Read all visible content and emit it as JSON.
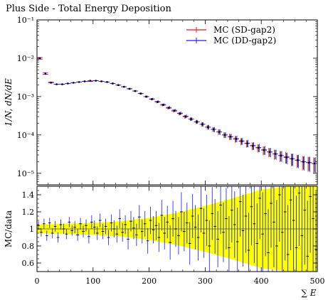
{
  "title": "Plus Side - Total Energy Deposition",
  "chart_data": [
    {
      "type": "scatter",
      "panel": "main",
      "title": "Plus Side - Total Energy Deposition",
      "xlabel": "∑ E",
      "ylabel": "1/N, dN/dE",
      "yscale": "log",
      "xlim": [
        0,
        500
      ],
      "ylim": [
        5e-06,
        0.1
      ],
      "ytick_labels": [
        "10⁻⁵",
        "10⁻⁴",
        "10⁻³",
        "10⁻²",
        "10⁻¹"
      ],
      "legend": "top-right",
      "series": [
        {
          "name": "MC (SD-gap2)",
          "color": "#e8161e",
          "x": [
            5,
            15,
            25,
            35,
            45,
            55,
            65,
            75,
            85,
            95,
            105,
            115,
            125,
            135,
            145,
            155,
            165,
            175,
            185,
            195,
            205,
            215,
            225,
            235,
            245,
            255,
            265,
            275,
            285,
            295,
            305,
            315,
            325,
            335,
            345,
            355,
            365,
            375,
            385,
            395,
            405,
            415,
            425,
            435,
            445,
            455,
            465,
            475,
            485,
            495
          ],
          "y": [
            0.0105,
            0.0042,
            0.0024,
            0.0021,
            0.0021,
            0.0022,
            0.0023,
            0.0024,
            0.0025,
            0.0026,
            0.0026,
            0.0025,
            0.0024,
            0.0022,
            0.002,
            0.0018,
            0.0016,
            0.0014,
            0.0012,
            0.001,
            0.00085,
            0.00072,
            0.0006,
            0.0005,
            0.00042,
            0.00036,
            0.0003,
            0.00026,
            0.00022,
            0.00019,
            0.00016,
            0.00014,
            0.00012,
            0.0001,
            9e-05,
            7.8e-05,
            6.8e-05,
            6e-05,
            5.2e-05,
            4.6e-05,
            4e-05,
            3.6e-05,
            3.2e-05,
            2.9e-05,
            2.7e-05,
            2.4e-05,
            2.2e-05,
            2e-05,
            1.9e-05,
            1.8e-05
          ]
        },
        {
          "name": "MC (DD-gap2)",
          "color": "#1c22e8",
          "x": [
            5,
            15,
            25,
            35,
            45,
            55,
            65,
            75,
            85,
            95,
            105,
            115,
            125,
            135,
            145,
            155,
            165,
            175,
            185,
            195,
            205,
            215,
            225,
            235,
            245,
            255,
            265,
            275,
            285,
            295,
            305,
            315,
            325,
            335,
            345,
            355,
            365,
            375,
            385,
            395,
            405,
            415,
            425,
            435,
            445,
            455,
            465,
            475,
            485,
            495
          ],
          "y": [
            0.0095,
            0.0038,
            0.0023,
            0.0021,
            0.0021,
            0.0022,
            0.0023,
            0.0024,
            0.0025,
            0.0025,
            0.0026,
            0.0025,
            0.0024,
            0.0022,
            0.002,
            0.0018,
            0.0016,
            0.0014,
            0.0012,
            0.001,
            0.00087,
            0.00074,
            0.00062,
            0.00052,
            0.00044,
            0.00037,
            0.00031,
            0.00026,
            0.00022,
            0.00019,
            0.00016,
            0.00014,
            0.00012,
            0.0001,
            9e-05,
            8e-05,
            7e-05,
            6.1e-05,
            5.3e-05,
            4.7e-05,
            4.1e-05,
            3.6e-05,
            3.2e-05,
            2.9e-05,
            2.6e-05,
            2.4e-05,
            2.2e-05,
            2e-05,
            1.9e-05,
            1.8e-05
          ]
        }
      ],
      "data_points": {
        "x": [
          5,
          15,
          25,
          35,
          45,
          55,
          65,
          75,
          85,
          95,
          105,
          115,
          125,
          135,
          145,
          155,
          165,
          175,
          185,
          195,
          205,
          215,
          225,
          235,
          245,
          255,
          265,
          275,
          285,
          295,
          305,
          315,
          325,
          335,
          345,
          355,
          365,
          375,
          385,
          395,
          405,
          415,
          425,
          435,
          445,
          455,
          465,
          475,
          485,
          495
        ],
        "y": [
          0.01,
          0.004,
          0.0023,
          0.0021,
          0.0021,
          0.0022,
          0.0023,
          0.0024,
          0.0025,
          0.0026,
          0.0026,
          0.0025,
          0.0024,
          0.0022,
          0.002,
          0.0018,
          0.0016,
          0.0014,
          0.0012,
          0.001,
          0.00086,
          0.00073,
          0.00061,
          0.00051,
          0.00043,
          0.00036,
          0.0003,
          0.00026,
          0.00022,
          0.00019,
          0.00016,
          0.00014,
          0.00012,
          0.0001,
          9e-05,
          7.9e-05,
          6.9e-05,
          6e-05,
          5.2e-05,
          4.6e-05,
          4e-05,
          3.6e-05,
          3.2e-05,
          2.9e-05,
          2.6e-05,
          2.4e-05,
          2.2e-05,
          2e-05,
          1.9e-05,
          1.8e-05
        ],
        "rel_err": [
          0.02,
          0.02,
          0.03,
          0.03,
          0.03,
          0.03,
          0.03,
          0.03,
          0.03,
          0.03,
          0.03,
          0.03,
          0.04,
          0.04,
          0.04,
          0.04,
          0.05,
          0.05,
          0.05,
          0.06,
          0.06,
          0.07,
          0.07,
          0.08,
          0.08,
          0.09,
          0.1,
          0.1,
          0.11,
          0.12,
          0.13,
          0.14,
          0.15,
          0.16,
          0.17,
          0.18,
          0.19,
          0.2,
          0.21,
          0.22,
          0.24,
          0.25,
          0.27,
          0.29,
          0.31,
          0.33,
          0.35,
          0.37,
          0.39,
          0.41
        ]
      }
    },
    {
      "type": "scatter",
      "panel": "ratio",
      "xlabel": "∑ E",
      "ylabel": "MC/data",
      "xlim": [
        0,
        500
      ],
      "ylim": [
        0.5,
        1.5
      ],
      "xtick_labels": [
        "0",
        "100",
        "200",
        "300",
        "400",
        "500"
      ],
      "ytick_labels": [
        "0.6",
        "0.8",
        "1",
        "1.2",
        "1.4"
      ],
      "band_color": "#ffff00",
      "band_x": [
        0,
        50,
        100,
        150,
        200,
        250,
        300,
        350,
        400,
        450,
        500
      ],
      "band_halfwidth": [
        0.05,
        0.06,
        0.07,
        0.09,
        0.13,
        0.19,
        0.27,
        0.36,
        0.46,
        0.5,
        0.5
      ],
      "ratio_x": [
        2.5,
        7.5,
        12.5,
        17.5,
        22.5,
        27.5,
        32.5,
        37.5,
        42.5,
        47.5,
        52.5,
        57.5,
        62.5,
        67.5,
        72.5,
        77.5,
        82.5,
        87.5,
        92.5,
        97.5,
        102.5,
        107.5,
        112.5,
        117.5,
        122.5,
        127.5,
        132.5,
        137.5,
        142.5,
        147.5,
        152.5,
        157.5,
        162.5,
        167.5,
        172.5,
        177.5,
        182.5,
        187.5,
        192.5,
        197.5,
        202.5,
        207.5,
        212.5,
        217.5,
        222.5,
        227.5,
        232.5,
        237.5,
        242.5,
        247.5,
        252.5,
        257.5,
        262.5,
        267.5,
        272.5,
        277.5,
        282.5,
        287.5,
        292.5,
        297.5,
        302.5,
        307.5,
        312.5,
        317.5,
        322.5,
        327.5,
        332.5,
        337.5,
        342.5,
        347.5,
        352.5,
        357.5,
        362.5,
        367.5,
        372.5,
        377.5,
        382.5,
        387.5,
        392.5,
        397.5,
        402.5,
        407.5,
        412.5,
        417.5,
        422.5,
        427.5,
        432.5,
        437.5,
        442.5,
        447.5,
        452.5,
        457.5,
        462.5,
        467.5,
        472.5,
        477.5,
        482.5,
        487.5,
        492.5,
        497.5
      ],
      "ratio_y": [
        1.04,
        0.96,
        1.06,
        0.92,
        1.07,
        0.95,
        1.03,
        0.9,
        1.05,
        1.0,
        0.94,
        1.08,
        0.98,
        1.02,
        0.93,
        1.06,
        0.97,
        1.04,
        0.91,
        1.08,
        1.02,
        0.95,
        1.1,
        0.97,
        1.03,
        0.9,
        1.07,
        1.0,
        0.94,
        1.12,
        0.96,
        1.05,
        0.88,
        1.09,
        1.01,
        0.93,
        1.14,
        0.97,
        1.06,
        0.86,
        1.1,
        0.99,
        1.04,
        0.9,
        1.16,
        0.95,
        1.08,
        0.84,
        1.12,
        1.0,
        0.92,
        1.2,
        0.97,
        1.07,
        0.83,
        1.15,
        1.02,
        0.9,
        1.24,
        0.95,
        1.1,
        0.8,
        1.18,
        1.03,
        0.88,
        1.28,
        0.96,
        1.12,
        0.78,
        1.22,
        1.05,
        0.85,
        1.32,
        0.98,
        1.15,
        0.75,
        1.26,
        1.06,
        0.83,
        1.36,
        0.94,
        1.18,
        0.72,
        1.3,
        1.08,
        0.8,
        1.4,
        0.96,
        1.2,
        0.7,
        1.34,
        1.1,
        0.78,
        1.42,
        0.92,
        1.22,
        0.68,
        1.38,
        1.12,
        0.76
      ],
      "ratio_err": [
        0.05,
        0.05,
        0.06,
        0.06,
        0.06,
        0.06,
        0.06,
        0.06,
        0.06,
        0.06,
        0.06,
        0.06,
        0.06,
        0.07,
        0.07,
        0.07,
        0.07,
        0.07,
        0.08,
        0.08,
        0.08,
        0.08,
        0.08,
        0.09,
        0.09,
        0.09,
        0.1,
        0.1,
        0.1,
        0.11,
        0.11,
        0.11,
        0.12,
        0.12,
        0.13,
        0.13,
        0.14,
        0.14,
        0.15,
        0.15,
        0.16,
        0.16,
        0.17,
        0.17,
        0.18,
        0.19,
        0.19,
        0.2,
        0.21,
        0.21,
        0.22,
        0.23,
        0.23,
        0.24,
        0.25,
        0.26,
        0.26,
        0.27,
        0.28,
        0.29,
        0.3,
        0.3,
        0.31,
        0.32,
        0.33,
        0.34,
        0.35,
        0.36,
        0.37,
        0.38,
        0.39,
        0.4,
        0.41,
        0.42,
        0.43,
        0.44,
        0.45,
        0.46,
        0.47,
        0.48,
        0.49,
        0.5,
        0.51,
        0.52,
        0.53,
        0.54,
        0.55,
        0.56,
        0.57,
        0.58,
        0.59,
        0.6,
        0.61,
        0.62,
        0.63,
        0.64,
        0.65,
        0.66,
        0.67,
        0.68
      ]
    }
  ]
}
